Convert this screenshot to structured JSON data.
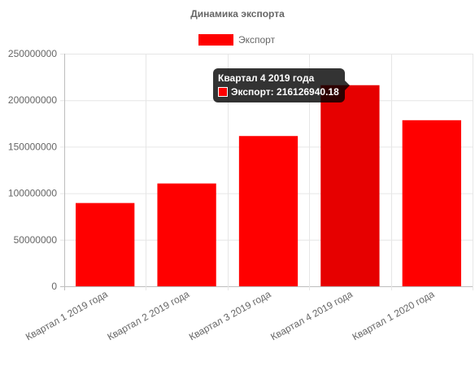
{
  "chart_data": {
    "type": "bar",
    "title": "Динамика экспорта",
    "categories": [
      "Квартал 1 2019 года",
      "Квартал 2 2019 года",
      "Квартал 3 2019 года",
      "Квартал 4 2019 года",
      "Квартал 1 2020 года"
    ],
    "series": [
      {
        "name": "Экспорт",
        "color": "#ff0000",
        "hover_color": "#e60000",
        "values": [
          89500000,
          110500000,
          161500000,
          216126940.18,
          178500000
        ]
      }
    ],
    "ylim": [
      0,
      250000000
    ],
    "yticks": [
      "0",
      "50000000",
      "100000000",
      "150000000",
      "200000000",
      "250000000"
    ],
    "ytick_values": [
      0,
      50000000,
      100000000,
      150000000,
      200000000,
      250000000
    ],
    "grid": true,
    "legend_position": "top",
    "highlighted_index": 3
  },
  "tooltip": {
    "title": "Квартал 4 2019 года",
    "label": "Экспорт: 216126940.18",
    "swatch_color": "#ff0000"
  }
}
